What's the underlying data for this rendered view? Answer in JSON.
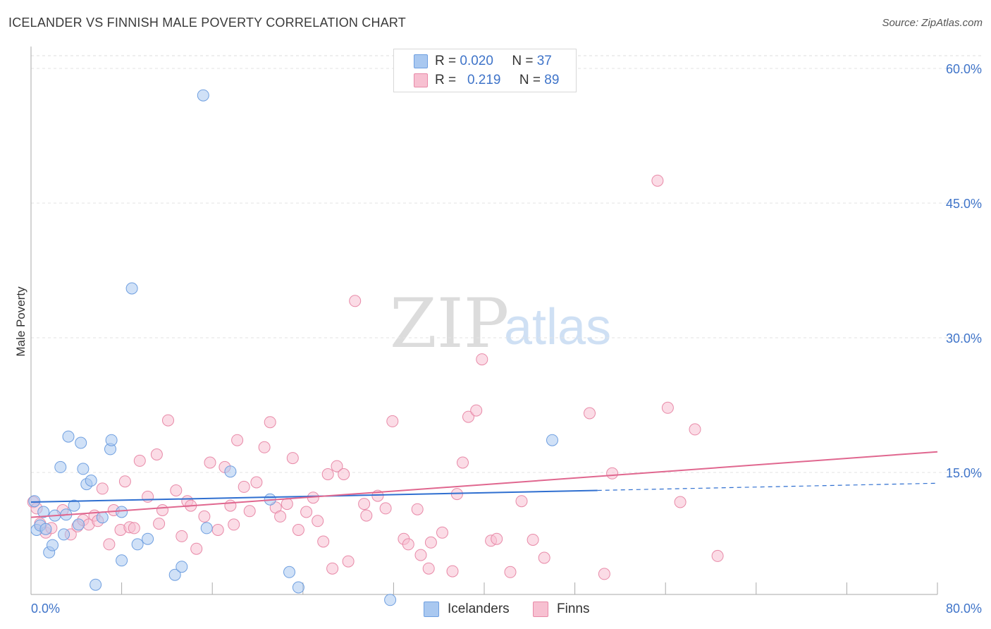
{
  "title": "ICELANDER VS FINNISH MALE POVERTY CORRELATION CHART",
  "source": "Source: ZipAtlas.com",
  "watermark": {
    "zip": "ZIP",
    "atlas": "atlas"
  },
  "legend": {
    "rows": [
      {
        "r_label": "R =",
        "r_value": "0.020",
        "n_label": "N =",
        "n_value": "37",
        "color": "#a9c8f0",
        "border": "#6f9fe0"
      },
      {
        "r_label": "R =",
        "r_value": "0.219",
        "n_label": "N =",
        "n_value": "89",
        "color": "#f7c0d1",
        "border": "#e88aa8"
      }
    ]
  },
  "bottom_legend": [
    {
      "label": "Icelanders",
      "color": "#a9c8f0",
      "border": "#6f9fe0"
    },
    {
      "label": "Finns",
      "color": "#f7c0d1",
      "border": "#e88aa8"
    }
  ],
  "chart_data": {
    "type": "scatter",
    "title": "ICELANDER VS FINNISH MALE POVERTY CORRELATION CHART",
    "xlabel": "",
    "ylabel": "Male Poverty",
    "xlim": [
      0,
      80
    ],
    "ylim": [
      0,
      60
    ],
    "x_tick_labels": [
      "0.0%",
      "80.0%"
    ],
    "y_tick_labels": [
      "15.0%",
      "30.0%",
      "45.0%",
      "60.0%"
    ],
    "y_ticks": [
      15,
      30,
      45,
      60
    ],
    "grid": true,
    "series": [
      {
        "name": "Icelanders",
        "color": "#6f9fe0",
        "fill": "#a9c8f0",
        "trend": {
          "x0": 0,
          "y0": 11.7,
          "x1": 50,
          "y1": 13.0,
          "dash_x1": 80,
          "dash_y1": 13.8,
          "color": "#2f6fd0"
        },
        "points": [
          [
            0.3,
            11.8
          ],
          [
            0.5,
            8.6
          ],
          [
            0.8,
            9.1
          ],
          [
            1.1,
            10.6
          ],
          [
            1.3,
            8.7
          ],
          [
            1.6,
            6.1
          ],
          [
            1.9,
            6.9
          ],
          [
            2.1,
            10.2
          ],
          [
            2.6,
            15.6
          ],
          [
            2.9,
            8.1
          ],
          [
            3.1,
            10.3
          ],
          [
            3.3,
            19.0
          ],
          [
            3.8,
            11.3
          ],
          [
            4.2,
            9.2
          ],
          [
            4.4,
            18.3
          ],
          [
            4.6,
            15.4
          ],
          [
            4.9,
            13.7
          ],
          [
            5.3,
            14.1
          ],
          [
            5.7,
            2.5
          ],
          [
            6.3,
            10.0
          ],
          [
            7.0,
            17.6
          ],
          [
            7.1,
            18.6
          ],
          [
            8.0,
            10.6
          ],
          [
            8.0,
            5.2
          ],
          [
            8.9,
            35.5
          ],
          [
            9.4,
            7.0
          ],
          [
            10.3,
            7.6
          ],
          [
            12.7,
            3.6
          ],
          [
            13.3,
            4.5
          ],
          [
            15.2,
            57.0
          ],
          [
            15.5,
            8.8
          ],
          [
            17.6,
            15.1
          ],
          [
            21.1,
            12.0
          ],
          [
            22.8,
            3.9
          ],
          [
            23.6,
            2.2
          ],
          [
            31.7,
            0.8
          ],
          [
            46.0,
            18.6
          ]
        ]
      },
      {
        "name": "Finns",
        "color": "#e88aa8",
        "fill": "#f7c0d1",
        "trend": {
          "x0": 0,
          "y0": 10.0,
          "x1": 80,
          "y1": 17.3,
          "color": "#e0678f"
        },
        "points": [
          [
            0.2,
            11.7
          ],
          [
            0.8,
            9.3
          ],
          [
            1.3,
            8.3
          ],
          [
            1.8,
            8.8
          ],
          [
            2.8,
            10.8
          ],
          [
            3.5,
            8.1
          ],
          [
            4.1,
            9.0
          ],
          [
            4.6,
            9.7
          ],
          [
            5.1,
            9.2
          ],
          [
            5.6,
            10.2
          ],
          [
            5.9,
            9.6
          ],
          [
            6.3,
            13.2
          ],
          [
            6.9,
            7.0
          ],
          [
            7.3,
            10.8
          ],
          [
            7.9,
            8.6
          ],
          [
            8.3,
            14.0
          ],
          [
            8.7,
            8.9
          ],
          [
            9.1,
            8.8
          ],
          [
            9.6,
            16.3
          ],
          [
            10.3,
            12.3
          ],
          [
            11.1,
            17.0
          ],
          [
            11.3,
            9.3
          ],
          [
            11.6,
            10.8
          ],
          [
            12.1,
            20.8
          ],
          [
            12.8,
            13.0
          ],
          [
            13.3,
            7.9
          ],
          [
            13.8,
            11.8
          ],
          [
            14.1,
            11.3
          ],
          [
            14.6,
            6.5
          ],
          [
            15.3,
            10.1
          ],
          [
            15.8,
            16.1
          ],
          [
            16.5,
            8.6
          ],
          [
            17.1,
            15.6
          ],
          [
            17.6,
            11.3
          ],
          [
            17.9,
            9.2
          ],
          [
            18.2,
            18.6
          ],
          [
            18.8,
            13.4
          ],
          [
            19.3,
            10.7
          ],
          [
            19.9,
            13.9
          ],
          [
            20.6,
            17.8
          ],
          [
            21.1,
            20.6
          ],
          [
            21.6,
            11.1
          ],
          [
            22.0,
            10.1
          ],
          [
            22.6,
            11.5
          ],
          [
            23.1,
            16.6
          ],
          [
            23.6,
            8.6
          ],
          [
            24.3,
            10.6
          ],
          [
            24.9,
            12.2
          ],
          [
            25.3,
            9.6
          ],
          [
            25.8,
            7.3
          ],
          [
            26.2,
            14.8
          ],
          [
            26.6,
            4.3
          ],
          [
            27.0,
            15.7
          ],
          [
            27.6,
            14.8
          ],
          [
            28.0,
            5.1
          ],
          [
            28.6,
            34.1
          ],
          [
            29.4,
            11.5
          ],
          [
            29.6,
            10.2
          ],
          [
            30.6,
            12.4
          ],
          [
            31.3,
            11.0
          ],
          [
            31.9,
            20.7
          ],
          [
            32.9,
            7.6
          ],
          [
            33.3,
            7.0
          ],
          [
            34.1,
            10.9
          ],
          [
            34.4,
            5.8
          ],
          [
            35.1,
            4.3
          ],
          [
            35.3,
            7.2
          ],
          [
            36.3,
            8.3
          ],
          [
            37.2,
            4.0
          ],
          [
            37.6,
            12.6
          ],
          [
            38.1,
            16.1
          ],
          [
            38.6,
            21.2
          ],
          [
            39.3,
            21.9
          ],
          [
            39.8,
            27.6
          ],
          [
            40.6,
            7.4
          ],
          [
            41.1,
            7.6
          ],
          [
            42.3,
            3.9
          ],
          [
            43.3,
            11.8
          ],
          [
            44.3,
            7.5
          ],
          [
            45.3,
            5.5
          ],
          [
            49.3,
            21.6
          ],
          [
            50.6,
            3.7
          ],
          [
            51.3,
            14.9
          ],
          [
            55.3,
            47.5
          ],
          [
            56.2,
            22.2
          ],
          [
            57.3,
            11.7
          ],
          [
            58.6,
            19.8
          ],
          [
            60.6,
            5.7
          ],
          [
            0.5,
            11.0
          ]
        ]
      }
    ]
  }
}
